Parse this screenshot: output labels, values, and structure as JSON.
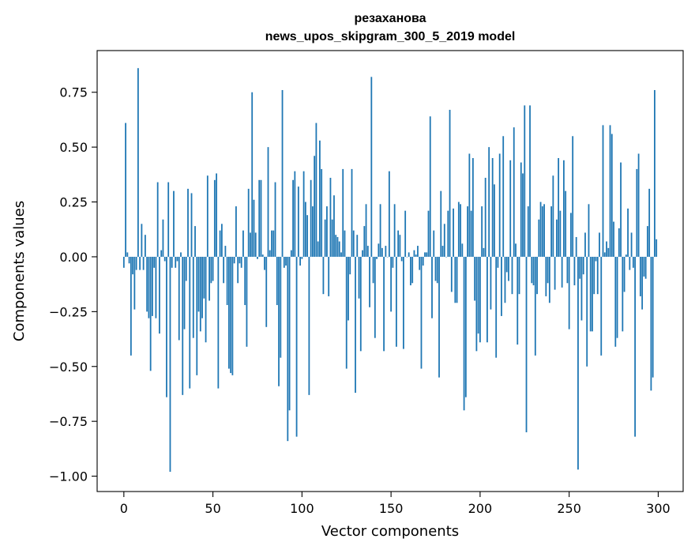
{
  "chart_data": {
    "type": "bar",
    "title": "резаханова",
    "subtitle": "news_upos_skipgram_300_5_2019 model",
    "xlabel": "Vector components",
    "ylabel": "Components values",
    "xlim": [
      -15,
      314
    ],
    "ylim": [
      -1.07,
      0.94
    ],
    "xticks": [
      0,
      50,
      100,
      150,
      200,
      250,
      300
    ],
    "yticks": [
      -1.0,
      -0.75,
      -0.5,
      -0.25,
      0.0,
      0.25,
      0.5,
      0.75
    ],
    "ytick_labels": [
      "−1.00",
      "−0.75",
      "−0.50",
      "−0.25",
      "0.00",
      "0.25",
      "0.50",
      "0.75"
    ],
    "grid": false,
    "bar_color": "#1f77b4",
    "values": [
      -0.05,
      0.61,
      0.02,
      -0.03,
      -0.45,
      -0.08,
      -0.24,
      -0.06,
      0.86,
      -0.06,
      0.15,
      -0.06,
      0.1,
      -0.25,
      -0.28,
      -0.52,
      -0.27,
      -0.05,
      -0.28,
      0.34,
      -0.35,
      0.03,
      0.17,
      -0.02,
      -0.64,
      0.34,
      -0.98,
      -0.05,
      0.3,
      -0.05,
      -0.02,
      -0.38,
      0.02,
      -0.63,
      -0.33,
      -0.11,
      0.31,
      -0.6,
      0.29,
      -0.37,
      0.14,
      -0.54,
      -0.25,
      -0.34,
      -0.28,
      -0.19,
      -0.39,
      0.37,
      -0.2,
      -0.12,
      -0.11,
      0.35,
      0.38,
      -0.6,
      0.12,
      0.15,
      -0.12,
      0.05,
      -0.22,
      -0.51,
      -0.53,
      -0.54,
      -0.03,
      0.23,
      -0.12,
      -0.03,
      -0.05,
      0.12,
      -0.22,
      -0.41,
      0.31,
      0.11,
      0.75,
      0.26,
      0.11,
      -0.01,
      0.35,
      0.35,
      0.01,
      -0.06,
      -0.32,
      0.5,
      0.03,
      0.12,
      0.12,
      0.34,
      -0.22,
      -0.59,
      -0.46,
      0.76,
      -0.05,
      -0.04,
      -0.84,
      -0.7,
      0.03,
      0.35,
      0.39,
      -0.82,
      0.32,
      -0.04,
      -0.01,
      0.39,
      0.25,
      0.19,
      -0.63,
      0.35,
      0.23,
      0.46,
      0.61,
      0.07,
      0.53,
      0.4,
      -0.17,
      0.17,
      0.23,
      -0.18,
      0.36,
      0.17,
      0.28,
      0.1,
      0.09,
      0.07,
      0.02,
      0.4,
      0.12,
      -0.51,
      -0.29,
      -0.08,
      0.4,
      0.12,
      -0.62,
      0.1,
      -0.19,
      -0.43,
      0.03,
      0.14,
      0.24,
      0.05,
      -0.23,
      0.82,
      -0.12,
      -0.37,
      -0.01,
      0.06,
      0.24,
      0.04,
      -0.43,
      0.05,
      0.0,
      0.39,
      -0.25,
      -0.05,
      0.24,
      -0.41,
      0.12,
      0.1,
      -0.02,
      -0.42,
      0.21,
      0.0,
      0.02,
      -0.13,
      -0.12,
      0.03,
      0.01,
      0.05,
      -0.06,
      -0.51,
      -0.04,
      0.02,
      0.02,
      0.21,
      0.64,
      -0.28,
      0.12,
      -0.11,
      -0.12,
      -0.55,
      0.3,
      0.05,
      0.15,
      0.0,
      0.21,
      0.67,
      -0.16,
      0.22,
      -0.21,
      -0.21,
      0.25,
      0.24,
      0.06,
      -0.7,
      -0.64,
      0.23,
      0.47,
      0.21,
      0.45,
      -0.2,
      -0.43,
      -0.35,
      -0.39,
      0.23,
      0.04,
      0.36,
      -0.39,
      0.5,
      -0.24,
      0.45,
      0.33,
      -0.46,
      -0.05,
      0.47,
      -0.27,
      0.55,
      -0.21,
      -0.07,
      -0.11,
      0.44,
      -0.17,
      0.59,
      0.06,
      -0.4,
      -0.17,
      0.43,
      0.38,
      0.69,
      -0.8,
      0.23,
      0.69,
      -0.12,
      -0.13,
      -0.45,
      -0.17,
      0.17,
      0.25,
      0.23,
      0.24,
      -0.18,
      -0.12,
      -0.21,
      0.23,
      0.37,
      -0.15,
      0.17,
      0.45,
      0.21,
      -0.14,
      0.44,
      0.3,
      -0.12,
      -0.33,
      0.2,
      0.55,
      -0.13,
      0.09,
      -0.97,
      -0.1,
      -0.29,
      -0.08,
      0.11,
      -0.5,
      0.24,
      -0.34,
      -0.34,
      -0.17,
      -0.02,
      -0.17,
      0.11,
      -0.45,
      0.6,
      0.02,
      0.07,
      0.04,
      0.6,
      0.56,
      0.16,
      -0.41,
      -0.37,
      0.13,
      0.43,
      -0.34,
      -0.16,
      0.01,
      0.22,
      -0.06,
      0.11,
      -0.05,
      -0.82,
      0.4,
      0.47,
      -0.18,
      -0.24,
      -0.09,
      -0.1,
      0.14,
      0.31,
      -0.61,
      -0.55,
      0.76,
      0.08
    ]
  }
}
